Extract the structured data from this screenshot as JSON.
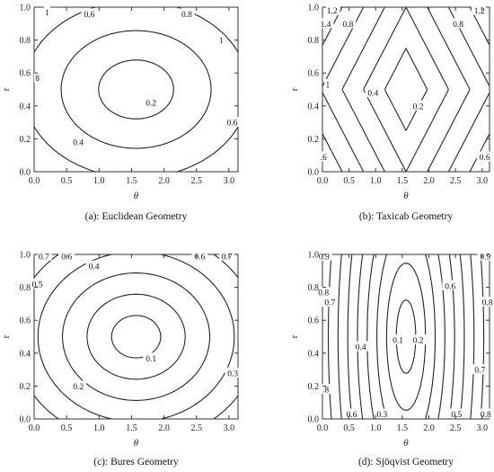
{
  "figure": {
    "panels": [
      "a",
      "b",
      "c",
      "d"
    ]
  },
  "chart_data": [
    {
      "type": "contour",
      "caption": "(a): Euclidean Geometry",
      "xlabel": "θ",
      "ylabel": "r",
      "xlim": [
        0.0,
        3.14
      ],
      "ylim": [
        0.0,
        1.0
      ],
      "xticks": [
        "0.0",
        "0.5",
        "1.0",
        "1.5",
        "2.0",
        "2.5",
        "3.0"
      ],
      "yticks": [
        "0.0",
        "0.2",
        "0.4",
        "0.6",
        "0.8",
        "1.0"
      ],
      "contour_labels": [
        {
          "text": "1",
          "x": 0.2,
          "y": 0.97
        },
        {
          "text": "0.6",
          "x": 0.85,
          "y": 0.96
        },
        {
          "text": "0.8",
          "x": 2.35,
          "y": 0.96
        },
        {
          "text": "1",
          "x": 2.88,
          "y": 0.8
        },
        {
          "text": "8",
          "x": 0.05,
          "y": 0.57
        },
        {
          "text": "0.2",
          "x": 1.8,
          "y": 0.42
        },
        {
          "text": "0.6",
          "x": 3.05,
          "y": 0.3
        },
        {
          "text": "0.4",
          "x": 0.68,
          "y": 0.18
        }
      ]
    },
    {
      "type": "contour",
      "caption": "(b): Taxicab Geometry",
      "xlabel": "θ",
      "ylabel": "r",
      "xlim": [
        0.0,
        3.14
      ],
      "ylim": [
        0.0,
        1.0
      ],
      "xticks": [
        "0.0",
        "0.5",
        "1.0",
        "1.5",
        "2.0",
        "2.5",
        "3.0"
      ],
      "yticks": [
        "0.0",
        "0.2",
        "0.4",
        "0.6",
        "0.8",
        "1.0"
      ],
      "contour_labels": [
        {
          "text": "1.2",
          "x": 0.18,
          "y": 0.98
        },
        {
          "text": "1.4",
          "x": 0.06,
          "y": 0.9
        },
        {
          "text": "0.8",
          "x": 0.48,
          "y": 0.9
        },
        {
          "text": "0.8",
          "x": 2.55,
          "y": 0.9
        },
        {
          "text": "1.2",
          "x": 2.95,
          "y": 0.98
        },
        {
          "text": "1",
          "x": 0.1,
          "y": 0.53
        },
        {
          "text": "0.4",
          "x": 0.95,
          "y": 0.48
        },
        {
          "text": "0.2",
          "x": 1.8,
          "y": 0.4
        },
        {
          "text": ".6",
          "x": 0.02,
          "y": 0.09
        },
        {
          "text": "0.6",
          "x": 3.05,
          "y": 0.09
        }
      ]
    },
    {
      "type": "contour",
      "caption": "(c): Bures Geometry",
      "xlabel": "θ",
      "ylabel": "r",
      "xlim": [
        0.0,
        3.14
      ],
      "ylim": [
        0.0,
        1.0
      ],
      "xticks": [
        "0.0",
        "0.5",
        "1.0",
        "1.5",
        "2.0",
        "2.5",
        "3.0"
      ],
      "yticks": [
        "0.0",
        "0.2",
        "0.4",
        "0.6",
        "0.8",
        "1.0"
      ],
      "contour_labels": [
        {
          "text": "0.7",
          "x": 0.15,
          "y": 0.99
        },
        {
          "text": "0.6",
          "x": 0.5,
          "y": 0.99
        },
        {
          "text": "0.4",
          "x": 0.92,
          "y": 0.93
        },
        {
          "text": "0.6",
          "x": 2.55,
          "y": 0.99
        },
        {
          "text": "0.7",
          "x": 2.97,
          "y": 0.99
        },
        {
          "text": "0.5",
          "x": 0.05,
          "y": 0.82
        },
        {
          "text": "0.1",
          "x": 1.8,
          "y": 0.37
        },
        {
          "text": "0.3",
          "x": 3.06,
          "y": 0.28
        },
        {
          "text": "0.2",
          "x": 0.68,
          "y": 0.2
        }
      ]
    },
    {
      "type": "contour",
      "caption": "(d): Sjöqvist Geometry",
      "xlabel": "θ",
      "ylabel": "r",
      "xlim": [
        0.0,
        3.14
      ],
      "ylim": [
        0.0,
        1.0
      ],
      "xticks": [
        "0.0",
        "0.5",
        "1.0",
        "1.5",
        "2.0",
        "2.5",
        "3.0"
      ],
      "yticks": [
        "0.0",
        "0.2",
        "0.4",
        "0.6",
        "0.8",
        "1.0"
      ],
      "contour_labels": [
        {
          "text": "0.9",
          "x": 0.03,
          "y": 0.99
        },
        {
          "text": "0.9",
          "x": 3.06,
          "y": 0.99
        },
        {
          "text": "0.8",
          "x": 0.02,
          "y": 0.77
        },
        {
          "text": "0.7",
          "x": 0.14,
          "y": 0.71
        },
        {
          "text": "0.6",
          "x": 2.4,
          "y": 0.81
        },
        {
          "text": "0.8",
          "x": 3.1,
          "y": 0.71
        },
        {
          "text": "0.4",
          "x": 0.72,
          "y": 0.44
        },
        {
          "text": "0.1",
          "x": 1.42,
          "y": 0.48
        },
        {
          "text": "0.2",
          "x": 1.8,
          "y": 0.48
        },
        {
          "text": "0.7",
          "x": 2.96,
          "y": 0.3
        },
        {
          "text": ".8",
          "x": 0.06,
          "y": 0.18
        },
        {
          "text": "0.6",
          "x": 0.55,
          "y": 0.03
        },
        {
          "text": "0.3",
          "x": 1.12,
          "y": 0.03
        },
        {
          "text": "0.5",
          "x": 2.52,
          "y": 0.03
        },
        {
          "text": "0.8",
          "x": 3.07,
          "y": 0.03
        }
      ]
    }
  ]
}
